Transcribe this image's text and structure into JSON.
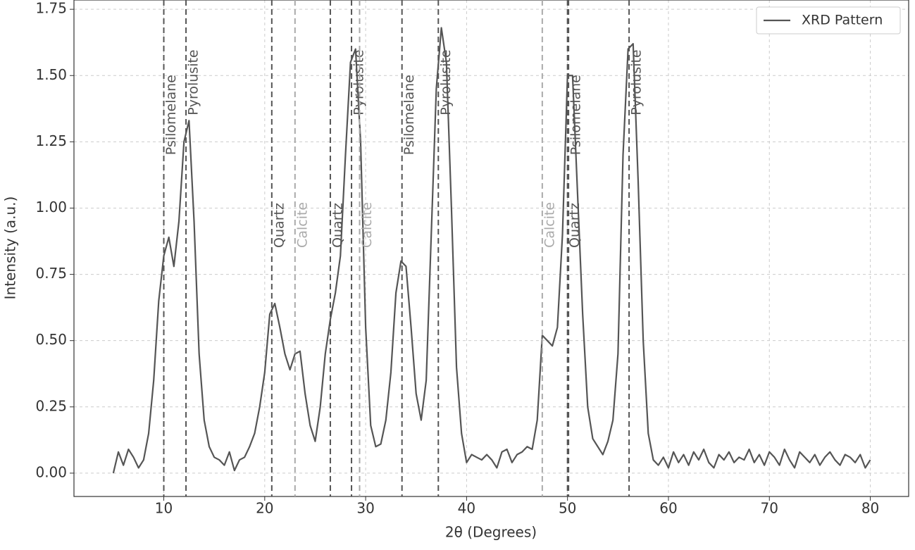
{
  "chart_data": {
    "type": "line",
    "title": null,
    "x_label": "2θ (Degrees)",
    "y_label": "Intensity (a.u.)",
    "xlim": [
      1.1,
      83.8
    ],
    "ylim": [
      -0.088,
      1.785
    ],
    "xticks": [
      10,
      20,
      30,
      40,
      50,
      60,
      70,
      80
    ],
    "yticks": [
      {
        "value": 0,
        "label": "0.00"
      },
      {
        "value": 0.25,
        "label": "0.25"
      },
      {
        "value": 0.5,
        "label": "0.50"
      },
      {
        "value": 0.75,
        "label": "0.75"
      },
      {
        "value": 1,
        "label": "1.00"
      },
      {
        "value": 1.25,
        "label": "1.25"
      },
      {
        "value": 1.5,
        "label": "1.50"
      },
      {
        "value": 1.75,
        "label": "1.75"
      }
    ],
    "grid": true,
    "legend": "upper right",
    "x": [
      5,
      5.5,
      6,
      6.5,
      7,
      7.5,
      8,
      8.5,
      9,
      9.5,
      10,
      10.5,
      11,
      11.5,
      12,
      12.5,
      13,
      13.5,
      14,
      14.5,
      15,
      15.5,
      16,
      16.5,
      17,
      17.5,
      18,
      18.5,
      19,
      19.5,
      20,
      20.5,
      21,
      21.5,
      22,
      22.5,
      23,
      23.5,
      24,
      24.5,
      25,
      25.5,
      26,
      26.5,
      27,
      27.5,
      28,
      28.5,
      29,
      29.5,
      30,
      30.5,
      31,
      31.5,
      32,
      32.5,
      33,
      33.5,
      34,
      34.5,
      35,
      35.5,
      36,
      36.5,
      37,
      37.5,
      38,
      38.5,
      39,
      39.5,
      40,
      40.5,
      41,
      41.5,
      42,
      42.5,
      43,
      43.5,
      44,
      44.5,
      45,
      45.5,
      46,
      46.5,
      47,
      47.5,
      48,
      48.5,
      49,
      49.5,
      50,
      50.5,
      51,
      51.5,
      52,
      52.5,
      53,
      53.5,
      54,
      54.5,
      55,
      55.5,
      56,
      56.5,
      57,
      57.5,
      58,
      58.5,
      59,
      59.5,
      60,
      60.5,
      61,
      61.5,
      62,
      62.5,
      63,
      63.5,
      64,
      64.5,
      65,
      65.5,
      66,
      66.5,
      67,
      67.5,
      68,
      68.5,
      69,
      69.5,
      70,
      70.5,
      71,
      71.5,
      72,
      72.5,
      73,
      73.5,
      74,
      74.5,
      75,
      75.5,
      76,
      76.5,
      77,
      77.5,
      78,
      78.5,
      79,
      79.5,
      80
    ],
    "series": [
      {
        "name": "XRD Pattern",
        "color": "#555555",
        "values": [
          0.0,
          0.08,
          0.03,
          0.09,
          0.06,
          0.02,
          0.05,
          0.15,
          0.35,
          0.65,
          0.82,
          0.89,
          0.78,
          0.95,
          1.25,
          1.33,
          0.95,
          0.45,
          0.2,
          0.1,
          0.06,
          0.05,
          0.03,
          0.08,
          0.01,
          0.05,
          0.06,
          0.1,
          0.15,
          0.25,
          0.38,
          0.6,
          0.64,
          0.55,
          0.45,
          0.39,
          0.45,
          0.46,
          0.3,
          0.18,
          0.12,
          0.25,
          0.45,
          0.58,
          0.68,
          0.82,
          1.2,
          1.55,
          1.6,
          1.25,
          0.55,
          0.18,
          0.1,
          0.11,
          0.2,
          0.38,
          0.68,
          0.8,
          0.78,
          0.55,
          0.3,
          0.2,
          0.35,
          0.9,
          1.45,
          1.68,
          1.55,
          1.0,
          0.4,
          0.15,
          0.04,
          0.07,
          0.06,
          0.05,
          0.07,
          0.05,
          0.02,
          0.08,
          0.09,
          0.04,
          0.07,
          0.08,
          0.1,
          0.09,
          0.2,
          0.52,
          0.5,
          0.48,
          0.55,
          0.9,
          1.5,
          1.5,
          1.05,
          0.6,
          0.25,
          0.13,
          0.1,
          0.07,
          0.12,
          0.2,
          0.45,
          1.2,
          1.6,
          1.62,
          1.1,
          0.5,
          0.15,
          0.05,
          0.03,
          0.06,
          0.02,
          0.08,
          0.04,
          0.07,
          0.03,
          0.08,
          0.05,
          0.09,
          0.04,
          0.02,
          0.07,
          0.05,
          0.08,
          0.04,
          0.06,
          0.05,
          0.09,
          0.04,
          0.07,
          0.03,
          0.08,
          0.06,
          0.03,
          0.09,
          0.05,
          0.02,
          0.08,
          0.06,
          0.04,
          0.07,
          0.03,
          0.06,
          0.08,
          0.05,
          0.03,
          0.07,
          0.06,
          0.04,
          0.07,
          0.02,
          0.05
        ]
      }
    ],
    "reference_lines": [
      {
        "x": 10.0,
        "label": "Psilomelane",
        "label_y": 1.2,
        "color": "#555555"
      },
      {
        "x": 12.2,
        "label": "Pyrolusite",
        "label_y": 1.35,
        "color": "#555555"
      },
      {
        "x": 20.7,
        "label": "Quartz",
        "label_y": 0.85,
        "color": "#555555"
      },
      {
        "x": 23.0,
        "label": "Calcite",
        "label_y": 0.85,
        "color": "#aaaaaa"
      },
      {
        "x": 26.5,
        "label": "Quartz",
        "label_y": 0.85,
        "color": "#555555"
      },
      {
        "x": 28.6,
        "label": "Pyrolusite",
        "label_y": 1.35,
        "color": "#555555"
      },
      {
        "x": 29.4,
        "label": "Calcite",
        "label_y": 0.85,
        "color": "#aaaaaa"
      },
      {
        "x": 33.6,
        "label": "Psilomelane",
        "label_y": 1.2,
        "color": "#555555"
      },
      {
        "x": 37.2,
        "label": "Pyrolusite",
        "label_y": 1.35,
        "color": "#555555"
      },
      {
        "x": 47.5,
        "label": "Calcite",
        "label_y": 0.85,
        "color": "#aaaaaa"
      },
      {
        "x": 50.0,
        "label": "Quartz",
        "label_y": 0.85,
        "color": "#555555"
      },
      {
        "x": 50.1,
        "label": "Psilomelane",
        "label_y": 1.2,
        "color": "#555555"
      },
      {
        "x": 56.1,
        "label": "Pyrolusite",
        "label_y": 1.35,
        "color": "#555555"
      }
    ]
  }
}
